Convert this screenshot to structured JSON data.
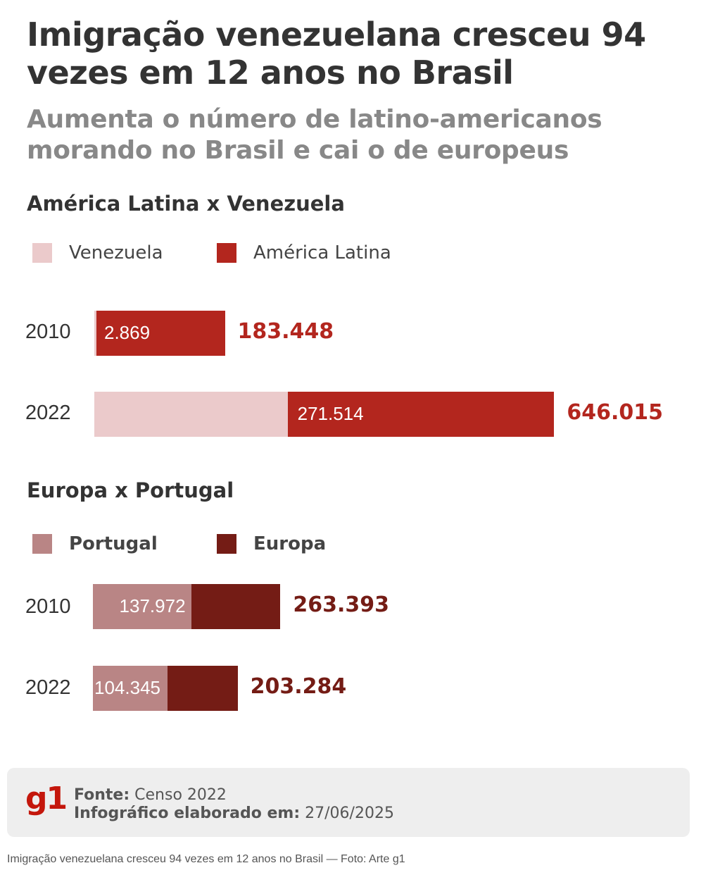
{
  "title": "Imigração venezuelana cresceu 94 vezes em 12 anos no Brasil",
  "subtitle": "Aumenta o número de latino-americanos morando no Brasil e cai o de europeus",
  "colors": {
    "venezuela": "#ebcacb",
    "america_latina": "#b3261e",
    "portugal": "#b98585",
    "europa": "#741c15",
    "latam_total_text": "#b3261e",
    "europe_total_text": "#741c15"
  },
  "chart_data": [
    {
      "type": "bar",
      "orientation": "horizontal",
      "stacking": "overlay",
      "title": "América Latina x Venezuela",
      "categories": [
        "2010",
        "2022"
      ],
      "series": [
        {
          "name": "Venezuela",
          "values": [
            2869,
            271514
          ],
          "labels": [
            "2.869",
            "271.514"
          ]
        },
        {
          "name": "América Latina",
          "values": [
            183448,
            646015
          ],
          "labels": [
            "183.448",
            "646.015"
          ]
        }
      ],
      "legend": [
        "Venezuela",
        "América Latina"
      ],
      "xlim": [
        0,
        700000
      ]
    },
    {
      "type": "bar",
      "orientation": "horizontal",
      "stacking": "overlay",
      "title": "Europa x Portugal",
      "categories": [
        "2010",
        "2022"
      ],
      "series": [
        {
          "name": "Portugal",
          "values": [
            137972,
            104345
          ],
          "labels": [
            "137.972",
            "104.345"
          ]
        },
        {
          "name": "Europa",
          "values": [
            263393,
            203284
          ],
          "labels": [
            "263.393",
            "203.284"
          ]
        }
      ],
      "legend": [
        "Portugal",
        "Europa"
      ],
      "xlim": [
        0,
        700000
      ]
    }
  ],
  "footer": {
    "logo": "g1",
    "source_label": "Fonte:",
    "source_value": "Censo 2022",
    "made_label": "Infográfico elaborado em:",
    "made_value": "27/06/2025"
  },
  "caption": "Imigração venezuelana cresceu 94 vezes em 12 anos no Brasil — Foto: Arte g1"
}
